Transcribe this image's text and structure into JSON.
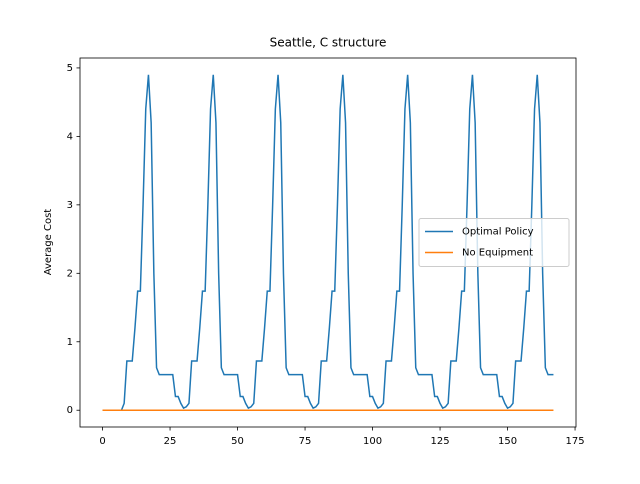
{
  "chart_data": {
    "type": "line",
    "title": "Seattle, C structure",
    "ylabel": "Average Cost",
    "x": [
      0,
      1,
      2,
      3,
      4,
      5,
      6,
      7,
      8,
      9,
      10,
      11,
      12,
      13,
      14,
      15,
      16,
      17,
      18,
      19,
      20,
      21,
      22,
      23,
      24,
      25,
      26,
      27,
      28,
      29,
      30,
      31,
      32,
      33,
      34,
      35,
      36,
      37,
      38,
      39,
      40,
      41,
      42,
      43,
      44,
      45,
      46,
      47,
      48,
      49,
      50,
      51,
      52,
      53,
      54,
      55,
      56,
      57,
      58,
      59,
      60,
      61,
      62,
      63,
      64,
      65,
      66,
      67,
      68,
      69,
      70,
      71,
      72,
      73,
      74,
      75,
      76,
      77,
      78,
      79,
      80,
      81,
      82,
      83,
      84,
      85,
      86,
      87,
      88,
      89,
      90,
      91,
      92,
      93,
      94,
      95,
      96,
      97,
      98,
      99,
      100,
      101,
      102,
      103,
      104,
      105,
      106,
      107,
      108,
      109,
      110,
      111,
      112,
      113,
      114,
      115,
      116,
      117,
      118,
      119,
      120,
      121,
      122,
      123,
      124,
      125,
      126,
      127,
      128,
      129,
      130,
      131,
      132,
      133,
      134,
      135,
      136,
      137,
      138,
      139,
      140,
      141,
      142,
      143,
      144,
      145,
      146,
      147,
      148,
      149,
      150,
      151,
      152,
      153,
      154,
      155,
      156,
      157,
      158,
      159,
      160,
      161,
      162,
      163,
      164,
      165,
      166,
      167
    ],
    "series": [
      {
        "name": "Optimal Policy",
        "color": "#1f77b4",
        "values": [
          0,
          0,
          0,
          0,
          0,
          0,
          0,
          0,
          0.1,
          0.72,
          0.72,
          0.72,
          1.2,
          1.74,
          1.74,
          3.0,
          4.4,
          4.9,
          4.2,
          2.0,
          0.62,
          0.52,
          0.52,
          0.52,
          0.52,
          0.52,
          0.52,
          0.2,
          0.2,
          0.1,
          0.03,
          0.05,
          0.1,
          0.72,
          0.72,
          0.72,
          1.2,
          1.74,
          1.74,
          3.0,
          4.4,
          4.9,
          4.2,
          2.0,
          0.62,
          0.52,
          0.52,
          0.52,
          0.52,
          0.52,
          0.52,
          0.2,
          0.2,
          0.1,
          0.03,
          0.05,
          0.1,
          0.72,
          0.72,
          0.72,
          1.2,
          1.74,
          1.74,
          3.0,
          4.4,
          4.9,
          4.2,
          2.0,
          0.62,
          0.52,
          0.52,
          0.52,
          0.52,
          0.52,
          0.52,
          0.2,
          0.2,
          0.1,
          0.03,
          0.05,
          0.1,
          0.72,
          0.72,
          0.72,
          1.2,
          1.74,
          1.74,
          3.0,
          4.4,
          4.9,
          4.2,
          2.0,
          0.62,
          0.52,
          0.52,
          0.52,
          0.52,
          0.52,
          0.52,
          0.2,
          0.2,
          0.1,
          0.03,
          0.05,
          0.1,
          0.72,
          0.72,
          0.72,
          1.2,
          1.74,
          1.74,
          3.0,
          4.4,
          4.9,
          4.2,
          2.0,
          0.62,
          0.52,
          0.52,
          0.52,
          0.52,
          0.52,
          0.52,
          0.2,
          0.2,
          0.1,
          0.03,
          0.05,
          0.1,
          0.72,
          0.72,
          0.72,
          1.2,
          1.74,
          1.74,
          3.0,
          4.4,
          4.9,
          4.2,
          2.0,
          0.62,
          0.52,
          0.52,
          0.52,
          0.52,
          0.52,
          0.52,
          0.2,
          0.2,
          0.1,
          0.03,
          0.05,
          0.1,
          0.72,
          0.72,
          0.72,
          1.2,
          1.74,
          1.74,
          3.0,
          4.4,
          4.9,
          4.2,
          2.0,
          0.62,
          0.52,
          0.52,
          0.52
        ]
      },
      {
        "name": "No Equipment",
        "color": "#ff7f0e",
        "values": [
          0,
          0,
          0,
          0,
          0,
          0,
          0,
          0,
          0,
          0,
          0,
          0,
          0,
          0,
          0,
          0,
          0,
          0,
          0,
          0,
          0,
          0,
          0,
          0,
          0,
          0,
          0,
          0,
          0,
          0,
          0,
          0,
          0,
          0,
          0,
          0,
          0,
          0,
          0,
          0,
          0,
          0,
          0,
          0,
          0,
          0,
          0,
          0,
          0,
          0,
          0,
          0,
          0,
          0,
          0,
          0,
          0,
          0,
          0,
          0,
          0,
          0,
          0,
          0,
          0,
          0,
          0,
          0,
          0,
          0,
          0,
          0,
          0,
          0,
          0,
          0,
          0,
          0,
          0,
          0,
          0,
          0,
          0,
          0,
          0,
          0,
          0,
          0,
          0,
          0,
          0,
          0,
          0,
          0,
          0,
          0,
          0,
          0,
          0,
          0,
          0,
          0,
          0,
          0,
          0,
          0,
          0,
          0,
          0,
          0,
          0,
          0,
          0,
          0,
          0,
          0,
          0,
          0,
          0,
          0,
          0,
          0,
          0,
          0,
          0,
          0,
          0,
          0,
          0,
          0,
          0,
          0,
          0,
          0,
          0,
          0,
          0,
          0,
          0,
          0,
          0,
          0,
          0,
          0,
          0,
          0,
          0,
          0,
          0,
          0,
          0,
          0,
          0,
          0,
          0,
          0,
          0,
          0,
          0,
          0,
          0,
          0,
          0,
          0,
          0,
          0,
          0,
          0
        ]
      }
    ],
    "xlim": [
      -8.35,
      175.35
    ],
    "xticks": [
      0,
      25,
      50,
      75,
      100,
      125,
      150,
      175
    ],
    "ylim": [
      -0.245,
      5.145
    ],
    "yticks": [
      0,
      1,
      2,
      3,
      4,
      5
    ],
    "legend": "center right"
  }
}
